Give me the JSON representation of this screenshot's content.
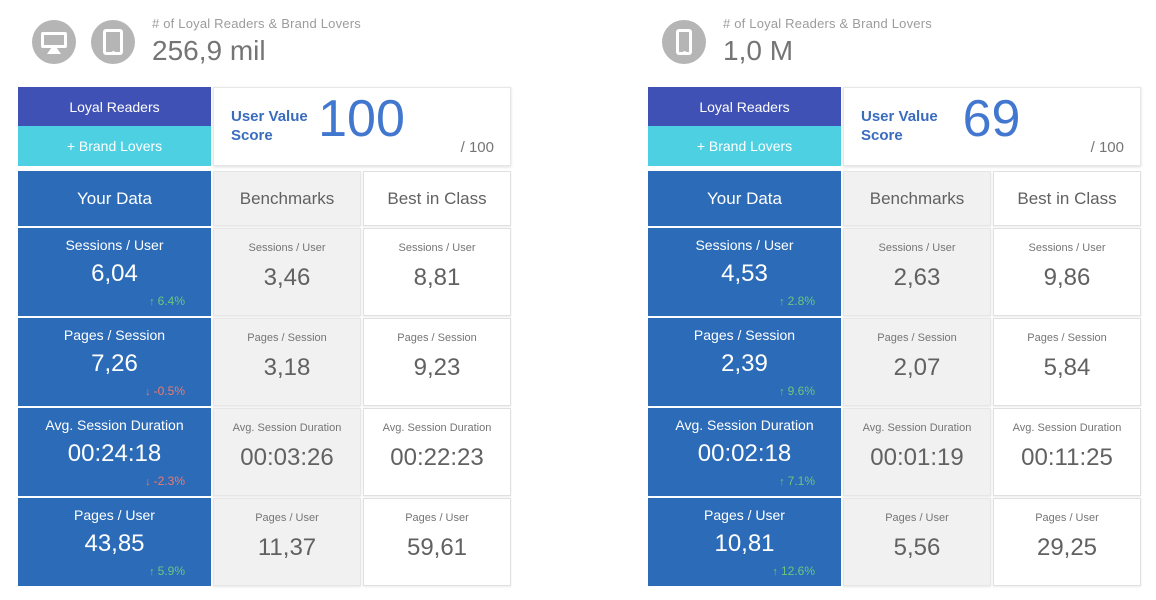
{
  "palette": {
    "indigo": "#3f51b5",
    "cyan": "#4dd0e1",
    "data_blue": "#2b6bb7",
    "score_blue": "#4277cf",
    "delta_up_green": "#6bc77d",
    "delta_down_red": "#ee7a70",
    "benchmark_bg": "#f1f1f1",
    "icon_circle_gray": "#b5b5b5"
  },
  "chart_data": [
    {
      "type": "table",
      "device_icons": [
        "desktop-icon",
        "tablet-icon"
      ],
      "title": "# of Loyal Readers & Brand Lovers",
      "total_value": "256,9 mil",
      "segments": {
        "primary": "Loyal Readers",
        "secondary": "+ Brand Lovers"
      },
      "score": {
        "label_line1": "User Value",
        "label_line2": "Score",
        "value": "100",
        "max_suffix": "/ 100"
      },
      "columns": {
        "your": "Your Data",
        "benchmark": "Benchmarks",
        "best": "Best in Class"
      },
      "rows": [
        {
          "metric": "Sessions / User",
          "your": "6,04",
          "delta": "6.4%",
          "trend": "up",
          "benchmark": "3,46",
          "best": "8,81"
        },
        {
          "metric": "Pages / Session",
          "your": "7,26",
          "delta": "-0.5%",
          "trend": "down",
          "benchmark": "3,18",
          "best": "9,23"
        },
        {
          "metric": "Avg. Session Duration",
          "your": "00:24:18",
          "delta": "-2.3%",
          "trend": "down",
          "benchmark": "00:03:26",
          "best": "00:22:23"
        },
        {
          "metric": "Pages / User",
          "your": "43,85",
          "delta": "5.9%",
          "trend": "up",
          "benchmark": "11,37",
          "best": "59,61"
        }
      ]
    },
    {
      "type": "table",
      "device_icons": [
        "smartphone-icon"
      ],
      "title": "# of Loyal Readers & Brand Lovers",
      "total_value": "1,0 M",
      "segments": {
        "primary": "Loyal Readers",
        "secondary": "+ Brand Lovers"
      },
      "score": {
        "label_line1": "User Value",
        "label_line2": "Score",
        "value": "69",
        "max_suffix": "/ 100"
      },
      "columns": {
        "your": "Your Data",
        "benchmark": "Benchmarks",
        "best": "Best in Class"
      },
      "rows": [
        {
          "metric": "Sessions / User",
          "your": "4,53",
          "delta": "2.8%",
          "trend": "up",
          "benchmark": "2,63",
          "best": "9,86"
        },
        {
          "metric": "Pages / Session",
          "your": "2,39",
          "delta": "9.6%",
          "trend": "up",
          "benchmark": "2,07",
          "best": "5,84"
        },
        {
          "metric": "Avg. Session Duration",
          "your": "00:02:18",
          "delta": "7.1%",
          "trend": "up",
          "benchmark": "00:01:19",
          "best": "00:11:25"
        },
        {
          "metric": "Pages / User",
          "your": "10,81",
          "delta": "12.6%",
          "trend": "up",
          "benchmark": "5,56",
          "best": "29,25"
        }
      ]
    }
  ]
}
